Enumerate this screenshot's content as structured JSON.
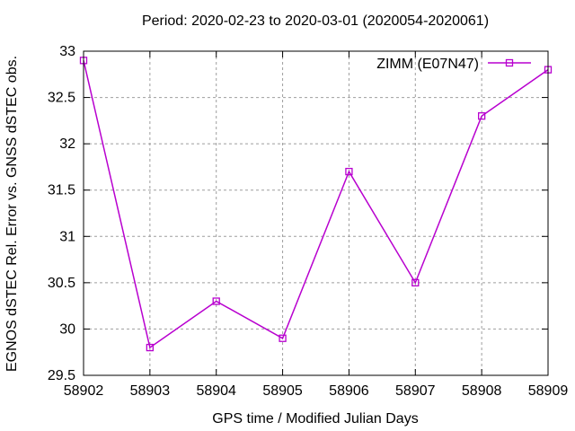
{
  "title": "Period: 2020-02-23 to 2020-03-01 (2020054-2020061)",
  "chart_data": {
    "type": "line",
    "title": "Period: 2020-02-23 to 2020-03-01 (2020054-2020061)",
    "xlabel": "GPS time / Modified Julian Days",
    "ylabel": "EGNOS dSTEC Rel. Error vs. GNSS dSTEC obs.",
    "x": [
      58902,
      58903,
      58904,
      58905,
      58906,
      58907,
      58908,
      58909
    ],
    "series": [
      {
        "name": "ZIMM (E07N47)",
        "values": [
          32.9,
          29.8,
          30.3,
          29.9,
          31.7,
          30.5,
          32.3,
          32.8
        ],
        "color": "#b800cf",
        "marker": "open-square"
      }
    ],
    "xlim": [
      58902,
      58909
    ],
    "ylim": [
      29.5,
      33
    ],
    "xticks": [
      58902,
      58903,
      58904,
      58905,
      58906,
      58907,
      58908,
      58909
    ],
    "yticks": [
      29.5,
      30,
      30.5,
      31,
      31.5,
      32,
      32.5,
      33
    ],
    "grid": true,
    "legend_position": "top-right",
    "colors": {
      "grid": "#9e9e9e",
      "axis": "#000000",
      "text": "#000000",
      "background": "#ffffff"
    }
  }
}
